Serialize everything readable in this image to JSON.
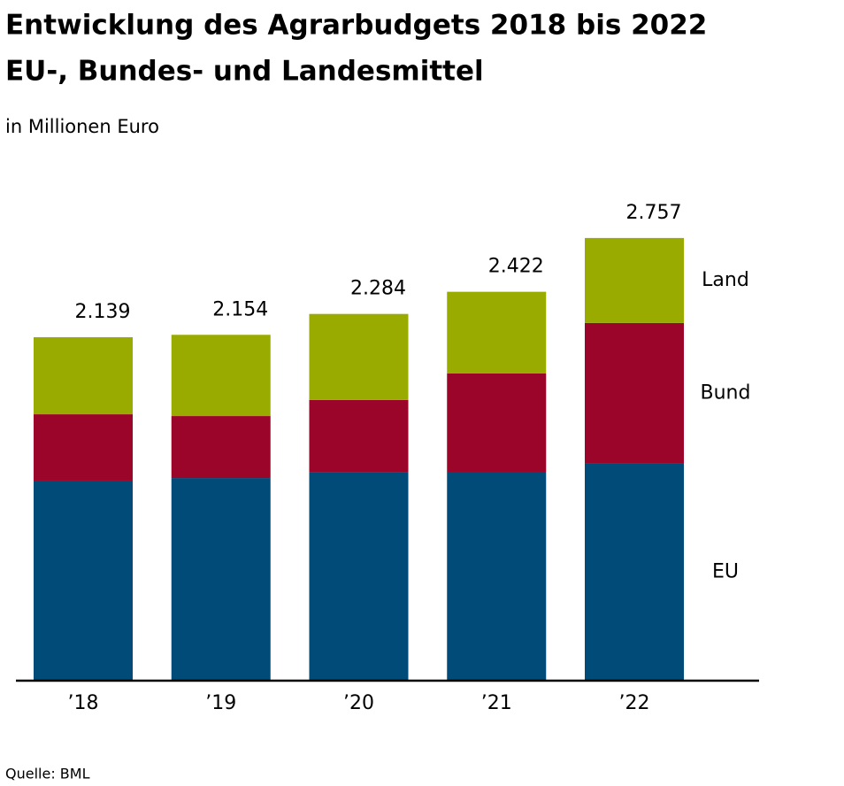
{
  "chart_data": {
    "type": "stacked_bar",
    "title": "Entwicklung des Agrarbudgets 2018 bis 2022",
    "subtitle": "EU-, Bundes- und Landesmittel",
    "unit_label": "in Millionen Euro",
    "source": "Quelle: BML",
    "categories": [
      "’18",
      "’19",
      "’20",
      "’21",
      "’22"
    ],
    "series": [
      {
        "name": "EU",
        "color": "#004b78",
        "values": [
          1246,
          1262,
          1296,
          1301,
          1351
        ]
      },
      {
        "name": "Bund",
        "color": "#9b0529",
        "values": [
          413,
          386,
          452,
          612,
          877
        ]
      },
      {
        "name": "Land",
        "color": "#9aab00",
        "values": [
          480,
          506,
          536,
          509,
          529
        ]
      }
    ],
    "totals": [
      2139,
      2154,
      2284,
      2422,
      2757
    ],
    "value_labels": [
      "2.139",
      "2.154",
      "2.284",
      "2.422",
      "2.757"
    ]
  }
}
